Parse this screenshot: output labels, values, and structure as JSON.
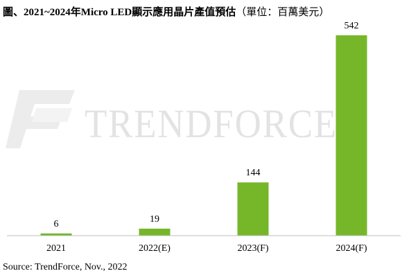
{
  "title": {
    "main": "圖、2021~2024年Micro LED顯示應用晶片產值預估",
    "unit": "（單位：百萬美元）"
  },
  "source": "Source: TrendForce, Nov., 2022",
  "watermark": {
    "text": "TRENDFORCE",
    "color": "#e3e3e3"
  },
  "colors": {
    "bar": "#76b72a",
    "axis": "#bfbfbf"
  },
  "chart_data": {
    "type": "bar",
    "categories": [
      "2021",
      "2022(E)",
      "2023(F)",
      "2024(F)"
    ],
    "values": [
      6,
      19,
      144,
      542
    ],
    "ylim": [
      0,
      600
    ],
    "grid": false,
    "legend": "none"
  }
}
